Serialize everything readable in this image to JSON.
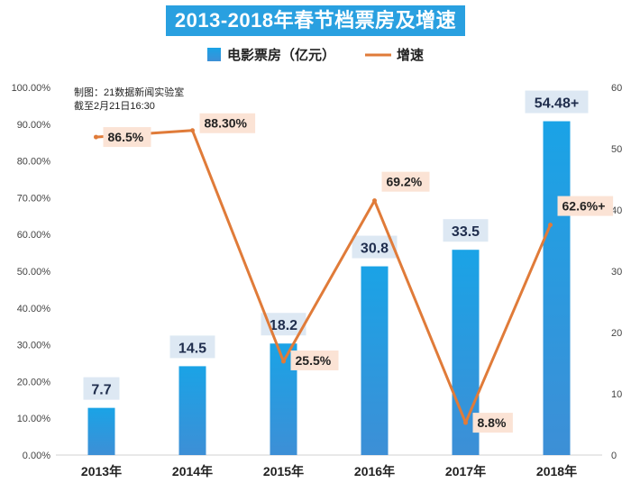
{
  "chart_data": {
    "type": "bar+line",
    "title": "2013-2018年春节档票房及增速",
    "categories": [
      "2013年",
      "2014年",
      "2015年",
      "2016年",
      "2017年",
      "2018年"
    ],
    "series": [
      {
        "name": "电影票房（亿元）",
        "type": "bar",
        "axis": "right",
        "values": [
          7.7,
          14.5,
          18.2,
          30.8,
          33.5,
          54.48
        ],
        "labels": [
          "7.7",
          "14.5",
          "18.2",
          "30.8",
          "33.5",
          "54.48+"
        ],
        "color": "#29a0e0"
      },
      {
        "name": "增速",
        "type": "line",
        "axis": "left",
        "values": [
          86.5,
          88.3,
          25.5,
          69.2,
          8.8,
          62.6
        ],
        "labels": [
          "86.5%",
          "88.30%",
          "25.5%",
          "69.2%",
          "8.8%",
          "62.6%+"
        ],
        "color": "#e07b39"
      }
    ],
    "y_left": {
      "min": 0,
      "max": 100,
      "step": 10,
      "tick_labels": [
        "0.00%",
        "10.00%",
        "20.00%",
        "30.00%",
        "40.00%",
        "50.00%",
        "60.00%",
        "70.00%",
        "80.00%",
        "90.00%",
        "100.00%"
      ]
    },
    "y_right": {
      "min": 0,
      "max": 60,
      "step": 10,
      "tick_labels": [
        "0",
        "10",
        "20",
        "30",
        "40",
        "50",
        "60"
      ]
    },
    "notes": [
      "制图：21数据新闻实验室",
      "截至2月21日16:30"
    ],
    "legend_position": "top-center",
    "grid": false
  },
  "colors": {
    "title_bg": "#29a0e0",
    "bar_top": "#1aa3e6",
    "bar_bottom": "#3d8fd6",
    "line": "#e07b39",
    "bar_label_bg": "#dde8f3",
    "rate_label_bg": "#fbe3d5"
  }
}
